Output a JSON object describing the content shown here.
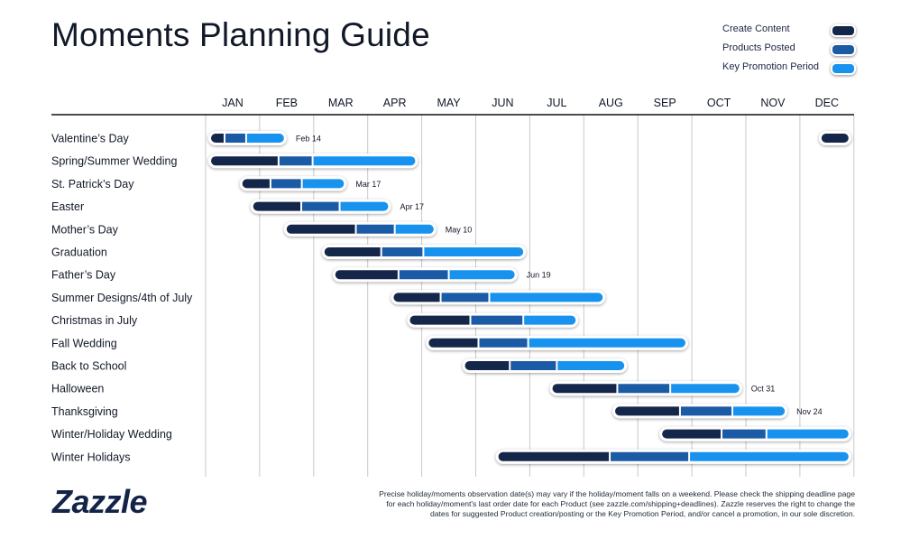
{
  "title": "Moments Planning Guide",
  "legend": [
    {
      "label": "Create Content",
      "color": "#14264a"
    },
    {
      "label": "Products Posted",
      "color": "#1b5aa4"
    },
    {
      "label": "Key Promotion Period",
      "color": "#1793ef"
    }
  ],
  "logo": "Zazzle",
  "disclaimer": "Precise holiday/moments observation date(s) may vary if the holiday/moment falls on a weekend. Please check the shipping deadline page for each holiday/moment's last order date for each Product (see zazzle.com/shipping+deadlines). Zazzle reserves the right to change the dates for suggested Product creation/posting or the Key Promotion Period, and/or cancel a promotion, in our sole discretion.",
  "chart_data": {
    "type": "gantt",
    "months": [
      "JAN",
      "FEB",
      "MAR",
      "APR",
      "MAY",
      "JUN",
      "JUL",
      "AUG",
      "SEP",
      "OCT",
      "NOV",
      "DEC"
    ],
    "colors": {
      "create": "#14264a",
      "posted": "#1b5aa4",
      "promo": "#1793ef"
    },
    "grid": true,
    "tasks": [
      {
        "name": "Valentine’s Day",
        "label": "Feb 14",
        "segments": [
          [
            0.1,
            0.35,
            "create"
          ],
          [
            0.35,
            0.75,
            "posted"
          ],
          [
            0.75,
            1.45,
            "promo"
          ]
        ],
        "extra_segments": [
          [
            11.4,
            11.9,
            "create"
          ]
        ]
      },
      {
        "name": "Spring/Summer Wedding",
        "label": "",
        "segments": [
          [
            0.1,
            1.35,
            "create"
          ],
          [
            1.35,
            1.98,
            "posted"
          ],
          [
            1.98,
            3.88,
            "promo"
          ]
        ]
      },
      {
        "name": "St. Patrick’s Day",
        "label": "Mar 17",
        "segments": [
          [
            0.68,
            1.2,
            "create"
          ],
          [
            1.2,
            1.78,
            "posted"
          ],
          [
            1.78,
            2.56,
            "promo"
          ]
        ]
      },
      {
        "name": "Easter",
        "label": "Apr 17",
        "segments": [
          [
            0.88,
            1.77,
            "create"
          ],
          [
            1.77,
            2.48,
            "posted"
          ],
          [
            2.48,
            3.38,
            "promo"
          ]
        ]
      },
      {
        "name": "Mother’s Day",
        "label": "May 10",
        "segments": [
          [
            1.5,
            2.78,
            "create"
          ],
          [
            2.78,
            3.5,
            "posted"
          ],
          [
            3.5,
            4.22,
            "promo"
          ]
        ]
      },
      {
        "name": "Graduation",
        "label": "",
        "segments": [
          [
            2.2,
            3.25,
            "create"
          ],
          [
            3.25,
            4.03,
            "posted"
          ],
          [
            4.03,
            5.88,
            "promo"
          ]
        ]
      },
      {
        "name": "Father’s Day",
        "label": "Jun 19",
        "segments": [
          [
            2.4,
            3.57,
            "create"
          ],
          [
            3.57,
            4.5,
            "posted"
          ],
          [
            4.5,
            5.72,
            "promo"
          ]
        ]
      },
      {
        "name": "Summer Designs/4th of July",
        "label": "",
        "segments": [
          [
            3.48,
            4.35,
            "create"
          ],
          [
            4.35,
            5.25,
            "posted"
          ],
          [
            5.25,
            7.35,
            "promo"
          ]
        ]
      },
      {
        "name": "Christmas in July",
        "label": "",
        "segments": [
          [
            3.78,
            4.9,
            "create"
          ],
          [
            4.9,
            5.88,
            "posted"
          ],
          [
            5.88,
            6.85,
            "promo"
          ]
        ]
      },
      {
        "name": "Fall Wedding",
        "label": "",
        "segments": [
          [
            4.13,
            5.05,
            "create"
          ],
          [
            5.05,
            5.97,
            "posted"
          ],
          [
            5.97,
            8.88,
            "promo"
          ]
        ]
      },
      {
        "name": "Back to School",
        "label": "",
        "segments": [
          [
            4.8,
            5.63,
            "create"
          ],
          [
            5.63,
            6.5,
            "posted"
          ],
          [
            6.5,
            7.75,
            "promo"
          ]
        ]
      },
      {
        "name": "Halloween",
        "label": "Oct 31",
        "segments": [
          [
            6.42,
            7.62,
            "create"
          ],
          [
            7.62,
            8.6,
            "posted"
          ],
          [
            8.6,
            9.88,
            "promo"
          ]
        ]
      },
      {
        "name": "Thanksgiving",
        "label": "Nov 24",
        "segments": [
          [
            7.58,
            8.78,
            "create"
          ],
          [
            8.78,
            9.75,
            "posted"
          ],
          [
            9.75,
            10.72,
            "promo"
          ]
        ]
      },
      {
        "name": "Winter/Holiday Wedding",
        "label": "",
        "segments": [
          [
            8.45,
            9.55,
            "create"
          ],
          [
            9.55,
            10.38,
            "posted"
          ],
          [
            10.38,
            11.9,
            "promo"
          ]
        ]
      },
      {
        "name": "Winter Holidays",
        "label": "",
        "segments": [
          [
            5.42,
            7.48,
            "create"
          ],
          [
            7.48,
            8.95,
            "posted"
          ],
          [
            8.95,
            11.9,
            "promo"
          ]
        ]
      }
    ]
  }
}
